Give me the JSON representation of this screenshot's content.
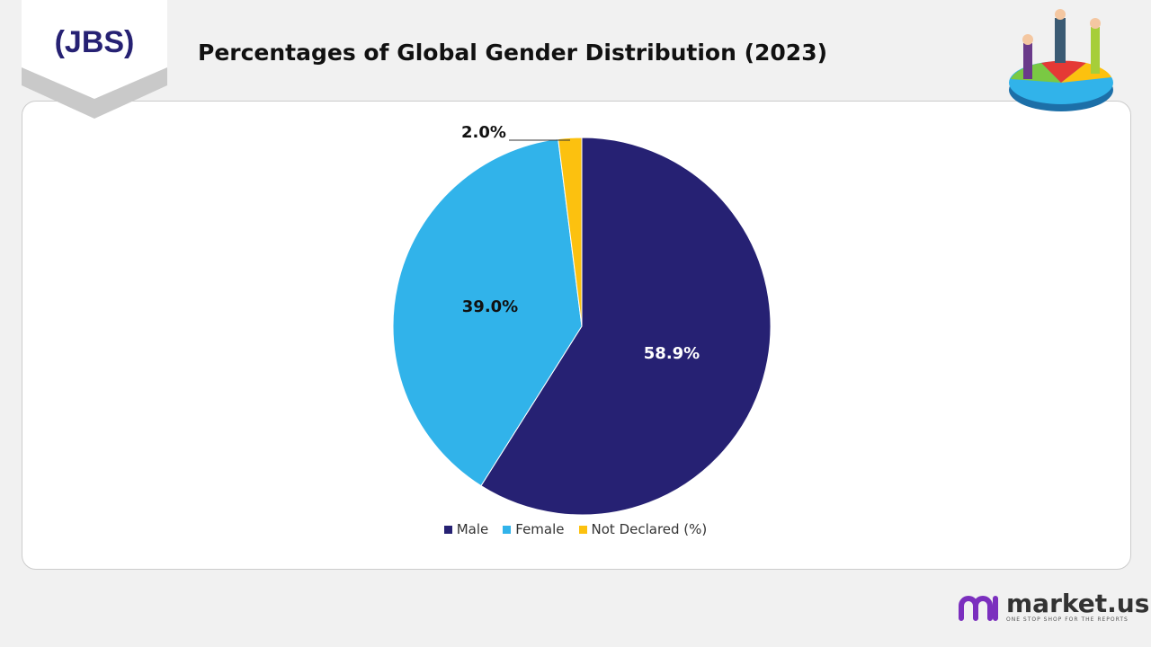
{
  "header": {
    "title": "Percentages of Global Gender Distribution (2023)",
    "logo": "JBS"
  },
  "footer": {
    "brand": "market.us",
    "tagline": "ONE STOP SHOP FOR THE REPORTS"
  },
  "chart_data": {
    "type": "pie",
    "title": "Percentages of Global Gender Distribution (2023)",
    "categories": [
      "Male",
      "Female",
      "Not Declared (%)"
    ],
    "values": [
      58.9,
      39.0,
      2.0
    ],
    "labels": [
      "58.9%",
      "39.0%",
      "2.0%"
    ],
    "colors": [
      "#262173",
      "#31b3ea",
      "#fcc10f"
    ],
    "legend_position": "bottom"
  }
}
